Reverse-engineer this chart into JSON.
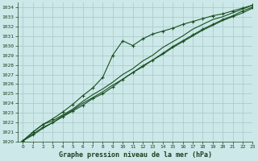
{
  "title": "Graphe pression niveau de la mer (hPa)",
  "bg_color": "#cce8e8",
  "grid_color": "#a8c8c8",
  "line_color": "#1a5020",
  "text_color": "#1a4020",
  "xlim": [
    -0.5,
    23
  ],
  "ylim": [
    1020,
    1034.5
  ],
  "xticks": [
    0,
    1,
    2,
    3,
    4,
    5,
    6,
    7,
    8,
    9,
    10,
    11,
    12,
    13,
    14,
    15,
    16,
    17,
    18,
    19,
    20,
    21,
    22,
    23
  ],
  "yticks": [
    1020,
    1021,
    1022,
    1023,
    1024,
    1025,
    1026,
    1027,
    1028,
    1029,
    1030,
    1031,
    1032,
    1033,
    1034
  ],
  "series_upper": [
    1020.1,
    1021.0,
    1021.8,
    1022.2,
    1022.8,
    1023.4,
    1024.2,
    1024.9,
    1025.5,
    1026.2,
    1027.0,
    1027.6,
    1028.4,
    1029.0,
    1029.8,
    1030.4,
    1031.0,
    1031.7,
    1032.2,
    1032.7,
    1033.0,
    1033.4,
    1033.8,
    1034.2
  ],
  "series_lower": [
    1020.1,
    1020.8,
    1021.5,
    1022.0,
    1022.6,
    1023.2,
    1023.8,
    1024.5,
    1025.0,
    1025.7,
    1026.5,
    1027.2,
    1027.9,
    1028.5,
    1029.2,
    1029.9,
    1030.5,
    1031.1,
    1031.7,
    1032.2,
    1032.7,
    1033.1,
    1033.6,
    1034.0
  ],
  "series_middle_upper": [
    1020.1,
    1021.0,
    1021.8,
    1022.4,
    1023.1,
    1023.9,
    1024.8,
    1025.6,
    1026.7,
    1029.0,
    1030.5,
    1030.0,
    1030.7,
    1031.2,
    1031.5,
    1031.8,
    1032.2,
    1032.5,
    1032.8,
    1033.1,
    1033.3,
    1033.6,
    1033.9,
    1034.2
  ],
  "series_smooth": [
    1020.1,
    1020.7,
    1021.4,
    1022.0,
    1022.7,
    1023.3,
    1024.0,
    1024.6,
    1025.2,
    1025.9,
    1026.5,
    1027.2,
    1027.8,
    1028.5,
    1029.1,
    1029.8,
    1030.4,
    1031.0,
    1031.6,
    1032.1,
    1032.6,
    1033.0,
    1033.4,
    1033.9
  ]
}
